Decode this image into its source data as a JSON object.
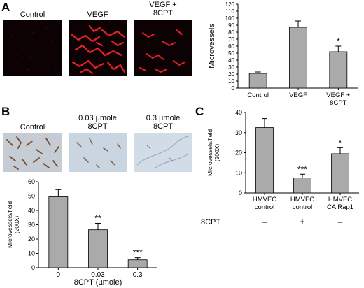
{
  "panels": {
    "A": {
      "letter": "A",
      "image_labels": [
        "Control",
        "VEGF",
        "VEGF +\n8CPT"
      ],
      "chart_data": {
        "type": "bar",
        "categories": [
          "Control",
          "VEGF",
          "VEGF +\n8CPT"
        ],
        "values": [
          21,
          87,
          52
        ],
        "errors": [
          2,
          9,
          8
        ],
        "significance": [
          "",
          "",
          "*"
        ],
        "ylabel": "Microvessels",
        "xlabel": "",
        "ylim": [
          0,
          120
        ],
        "yticks": [
          0,
          10,
          20,
          30,
          40,
          50,
          60,
          70,
          80,
          90,
          100,
          110,
          120
        ],
        "bar_color": "#aaaaaa"
      }
    },
    "B": {
      "letter": "B",
      "image_labels": [
        "Control",
        "0.03 µmole\n8CPT",
        "0.3 µmole\n8CPT"
      ],
      "chart_data": {
        "type": "bar",
        "categories": [
          "0",
          "0.03",
          "0.3"
        ],
        "values": [
          49.5,
          26.5,
          5.5
        ],
        "errors": [
          5,
          4.5,
          1.5
        ],
        "significance": [
          "",
          "**",
          "***"
        ],
        "ylabel": "Microvessels/field\n(200X)",
        "xlabel": "8CPT (µmole)",
        "ylim": [
          0,
          60
        ],
        "yticks": [
          0,
          10,
          20,
          30,
          40,
          50,
          60
        ],
        "bar_color": "#aaaaaa"
      }
    },
    "C": {
      "letter": "C",
      "chart_data": {
        "type": "bar",
        "categories": [
          "HMVEC\ncontrol",
          "HMVEC\ncontrol",
          "HMVEC\nCA Rap1"
        ],
        "values": [
          32.5,
          7.5,
          19.5
        ],
        "errors": [
          4.5,
          1.8,
          3
        ],
        "significance": [
          "",
          "***",
          "*"
        ],
        "ylabel": "Microvessels/field\n(200X)",
        "xlabel": "",
        "ylim": [
          0,
          40
        ],
        "yticks": [
          0,
          10,
          20,
          30,
          40
        ],
        "treatment_label": "8CPT",
        "treatment": [
          "–",
          "+",
          "–"
        ],
        "bar_color": "#aaaaaa"
      }
    }
  }
}
